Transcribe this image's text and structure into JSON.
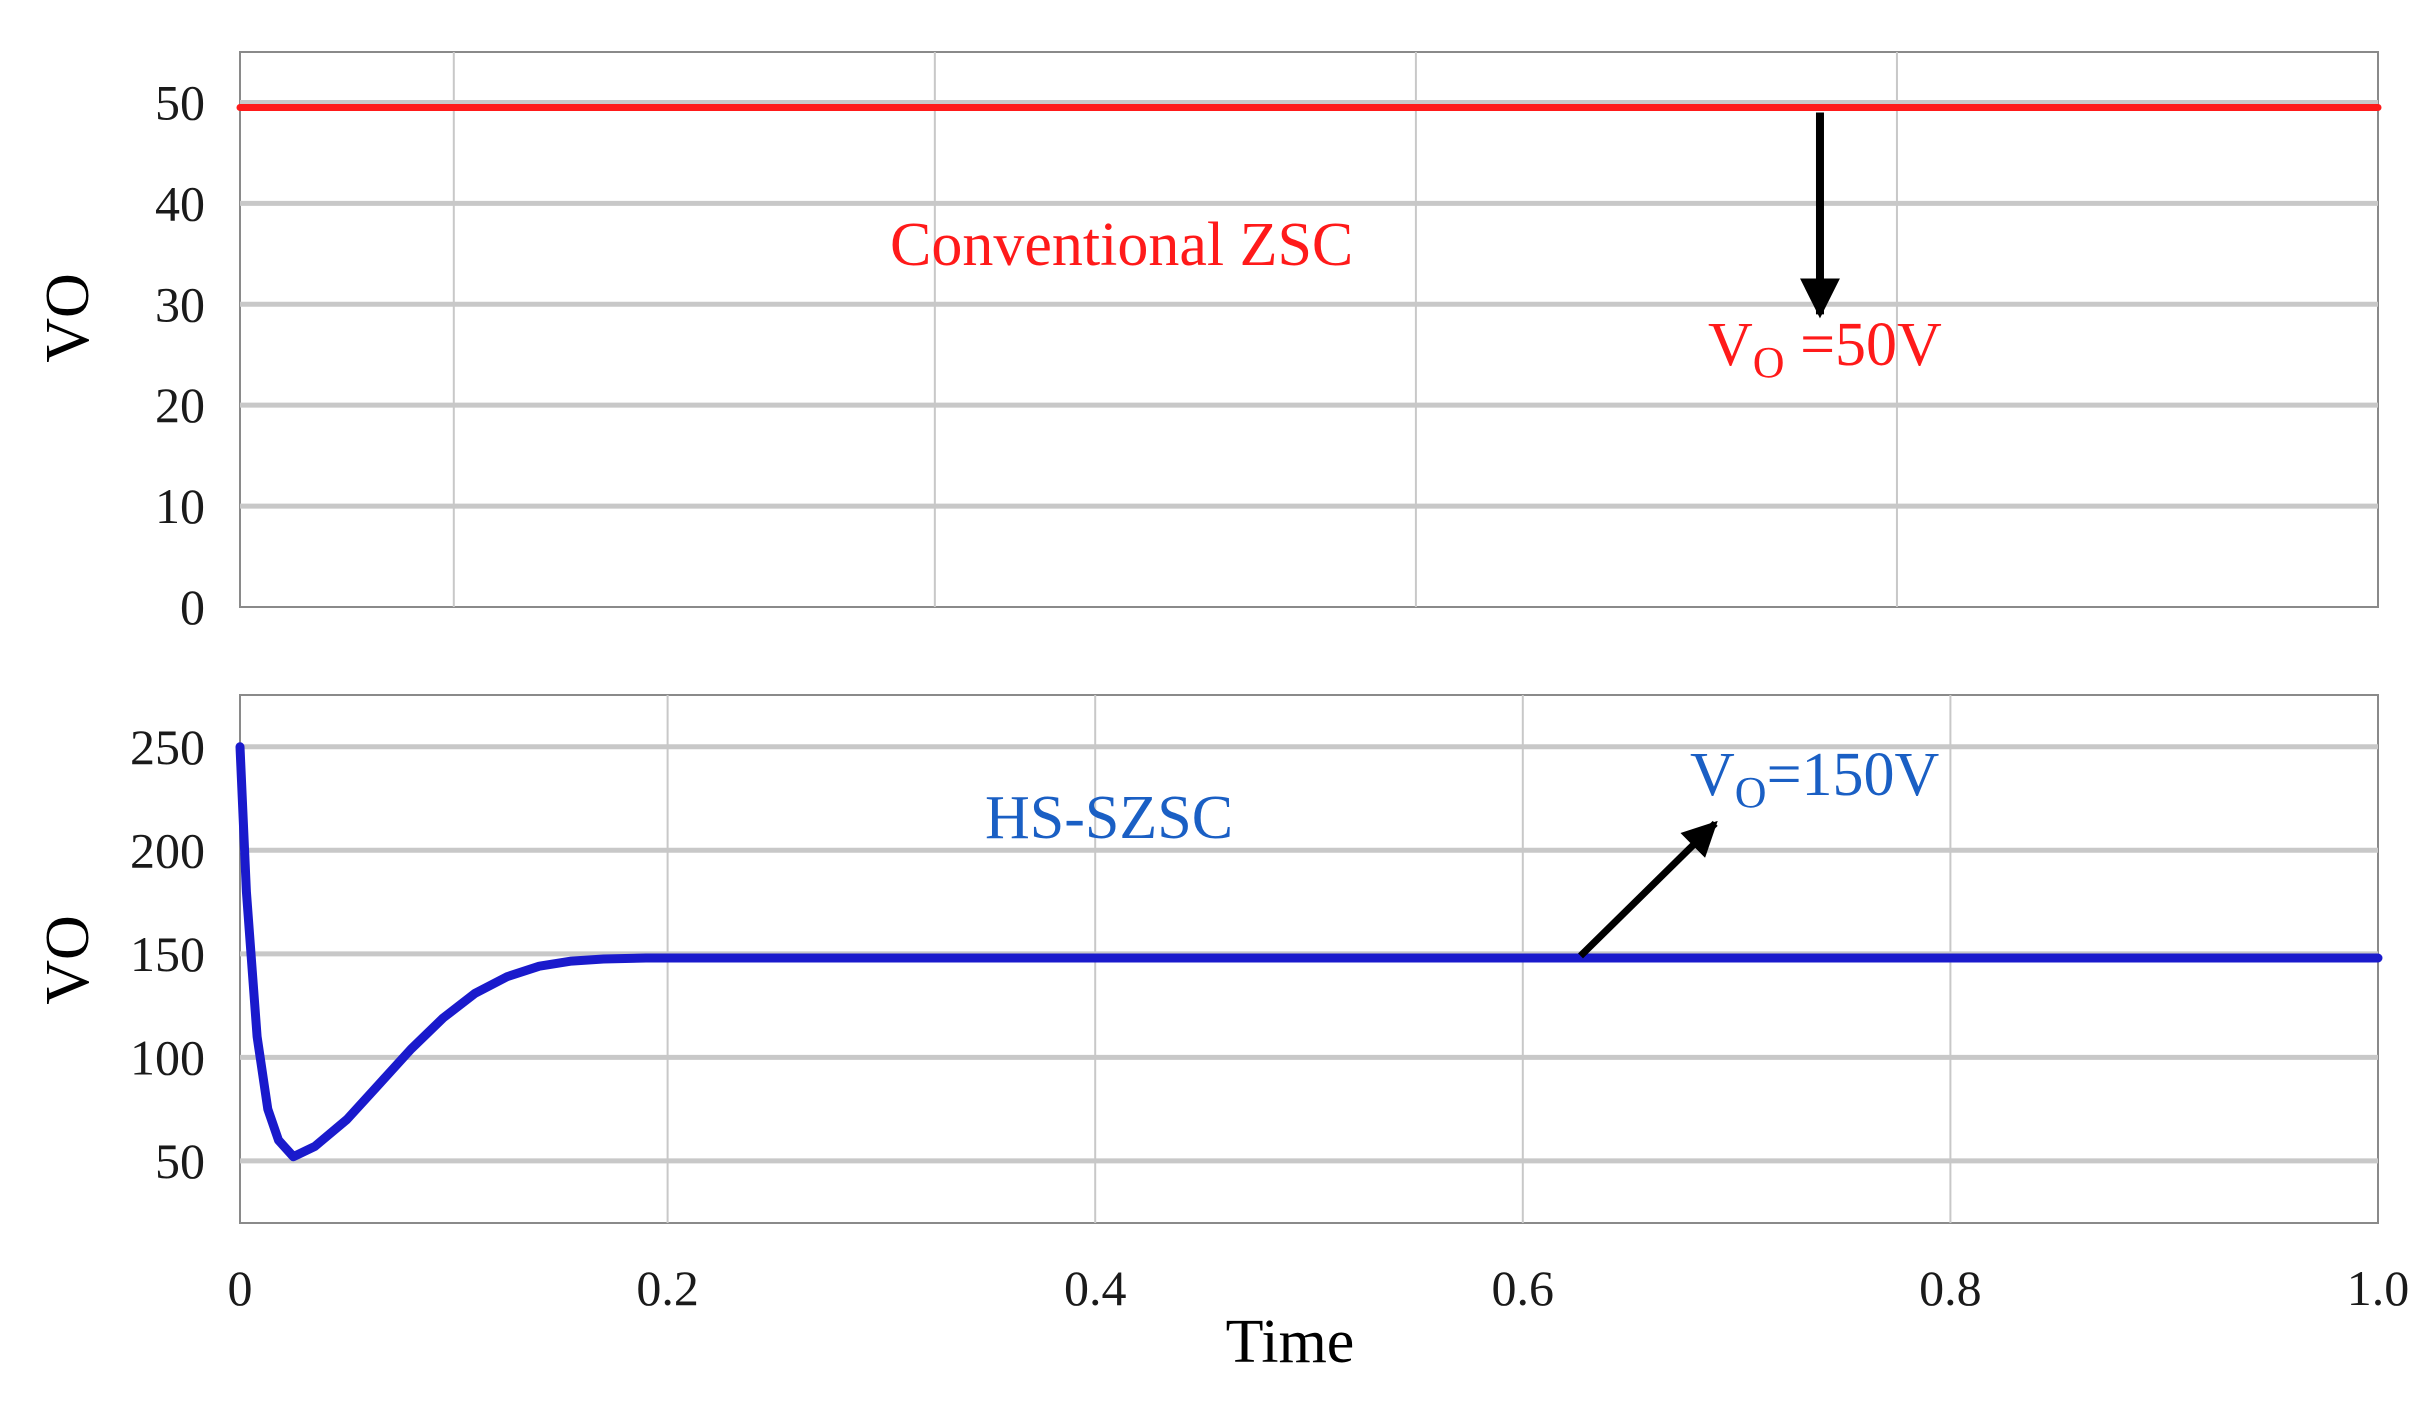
{
  "chart_data": [
    {
      "type": "line",
      "ylabel": "VO",
      "xlim": [
        0,
        1.0
      ],
      "ylim": [
        0,
        55
      ],
      "yticks": [
        0,
        10,
        20,
        30,
        40,
        50
      ],
      "vgrid": [
        0.1,
        0.325,
        0.55,
        0.775
      ],
      "series": [
        {
          "name": "Conventional ZSC",
          "color": "#ff1a1a",
          "x": [
            0,
            1.0
          ],
          "y": [
            49.5,
            49.5
          ]
        }
      ],
      "annotations": {
        "label": "Conventional ZSC",
        "vo_main": "V",
        "vo_sub": "O",
        "vo_value": " =50V",
        "arrow": {
          "from": [
            0.739,
            49
          ],
          "to": [
            0.739,
            29
          ]
        }
      }
    },
    {
      "type": "line",
      "ylabel": "VO",
      "xlabel": "Time",
      "xlim": [
        0,
        1.0
      ],
      "ylim": [
        20,
        275
      ],
      "yticks": [
        50,
        100,
        150,
        200,
        250
      ],
      "xticks": [
        0,
        0.2,
        0.4,
        0.6,
        0.8,
        1.0
      ],
      "xticklabels": [
        "0",
        "0.2",
        "0.4",
        "0.6",
        "0.8",
        "1.0"
      ],
      "series": [
        {
          "name": "HS-SZSC",
          "color": "#1a1acc",
          "x": [
            0,
            0.003,
            0.008,
            0.013,
            0.018,
            0.025,
            0.035,
            0.05,
            0.065,
            0.08,
            0.095,
            0.11,
            0.125,
            0.14,
            0.155,
            0.17,
            0.19,
            0.22,
            0.26,
            0.3,
            0.5,
            0.7,
            0.9,
            1.0
          ],
          "y": [
            250,
            180,
            110,
            75,
            60,
            52,
            57,
            70,
            87,
            104,
            119,
            131,
            139,
            144,
            146.5,
            147.5,
            148,
            148,
            148,
            148,
            148,
            148,
            148,
            148
          ]
        }
      ],
      "annotations": {
        "label": "HS-SZSC",
        "vo_main": "V",
        "vo_sub": "O",
        "vo_value": "=150V",
        "arrow": {
          "from": [
            0.627,
            149
          ],
          "to": [
            0.69,
            213
          ]
        }
      }
    }
  ]
}
